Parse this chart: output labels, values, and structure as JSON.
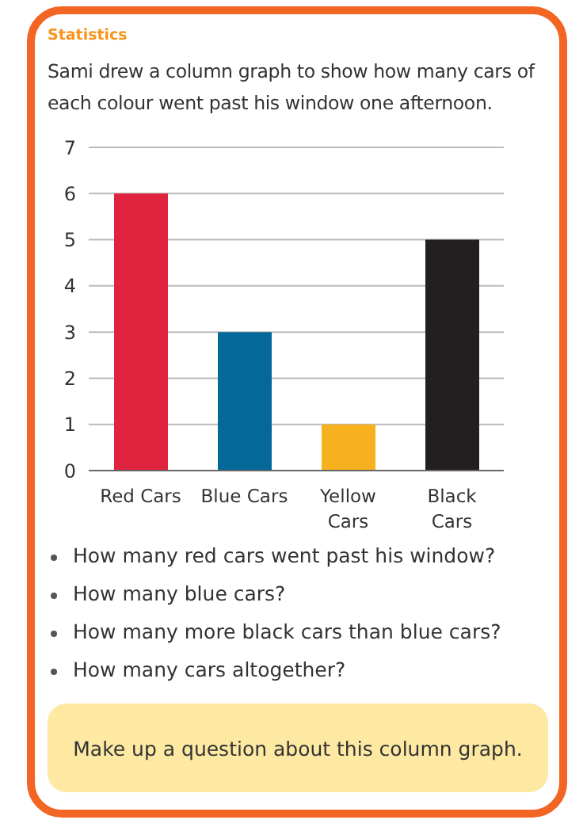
{
  "chart_data": {
    "type": "bar",
    "title": "Statistics",
    "subtitle": "Sami drew a column graph to show how many cars of each colour went past his window one afternoon.",
    "categories": [
      "Red Cars",
      "Blue Cars",
      "Yellow Cars",
      "Black Cars"
    ],
    "values": [
      6,
      3,
      1,
      5
    ],
    "colors": [
      "#e0243f",
      "#05689b",
      "#f7b11e",
      "#231f20"
    ],
    "ylim": [
      0,
      7
    ],
    "yticks": [
      0,
      1,
      2,
      3,
      4,
      5,
      6,
      7
    ],
    "grid": "y",
    "annotations": [
      "How many red cars went past his window?",
      "How many blue cars?",
      "How many more black cars than blue cars?",
      "How many cars altogether?",
      "Make up a question about this column graph."
    ]
  }
}
